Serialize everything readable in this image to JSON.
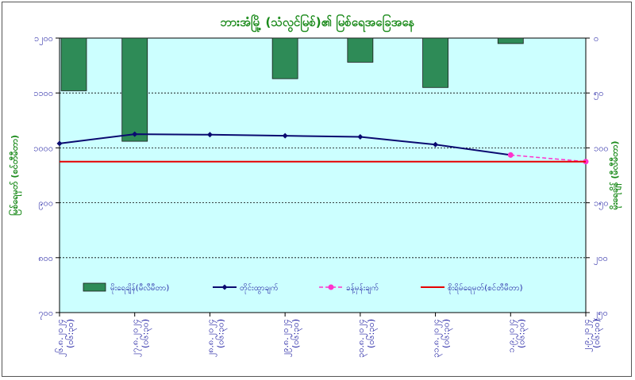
{
  "chart_data": {
    "type": "bar",
    "title": "ဘားအံမြို့ (သံလွင်မြစ်)၏ မြစ်ရေအခြေအနေ",
    "ylabel_left": "မြစ်ရေမှတ် (စင်တီမီတာ)",
    "ylabel_right": "မိုးရေချိန် (မီလီမီတာ)",
    "left_axis": {
      "min": 700,
      "max": 1200,
      "ticks": [
        "၁၂၀၀",
        "၁၁၀၀",
        "၁၀၀၀",
        "၉၀၀",
        "၈၀၀",
        "၇၀၀"
      ],
      "tick_values": [
        1200,
        1100,
        1000,
        900,
        800,
        700
      ]
    },
    "right_axis": {
      "min": 0,
      "max": 250,
      "reversed": true,
      "ticks": [
        "၀",
        "၅၀",
        "၁၀၀",
        "၁၅၀",
        "၂၀၀",
        "၂၅၀"
      ],
      "tick_values": [
        0,
        50,
        100,
        150,
        200,
        250
      ]
    },
    "categories": [
      [
        "၂၆.၈.၂၀၂၄",
        "(၀၆:၃၀)"
      ],
      [
        "၂၇.၈.၂၀၂၄",
        "(၀၆:၃၀)"
      ],
      [
        "၂၈.၈.၂၀၂၄",
        "(၀၆:၃၀)"
      ],
      [
        "၂၉.၈.၂၀၂၄",
        "(၀၆:၃၀)"
      ],
      [
        "၃၀.၈.၂၀၂၄",
        "(၀၆:၃၀)"
      ],
      [
        "၃၁.၈.၂၀၂၄",
        "(၀၆:၃၀)"
      ],
      [
        "၁.၉.၂၀၂၄",
        "(၀၆:၃၀)"
      ],
      [
        "၂.၉.၂၀၂၄",
        "(၀၆:၃၀)"
      ]
    ],
    "series": [
      {
        "name": "မိုးရေချိန်(မီလီမီတာ)",
        "kind": "bar",
        "axis": "right",
        "color": "#2e8b57",
        "values": [
          48,
          94,
          null,
          37,
          22,
          45,
          5,
          null
        ]
      },
      {
        "name": "တိုင်းထွာချက်",
        "kind": "line",
        "axis": "left",
        "color": "#0a0a70",
        "values": [
          1008,
          1025,
          1024,
          1022,
          1020,
          1006,
          987,
          null
        ]
      },
      {
        "name": "ခန့်မှန်းချက်",
        "kind": "dashed-line",
        "axis": "left",
        "color": "#ff33cc",
        "values": [
          null,
          null,
          null,
          null,
          null,
          null,
          987,
          975
        ]
      },
      {
        "name": "စိုးရိမ်ရေမှတ်(စင်တီမီတာ)",
        "kind": "hline",
        "axis": "left",
        "color": "#e60000",
        "value": 975
      }
    ],
    "grid": true,
    "legend_position": "bottom-inside"
  }
}
